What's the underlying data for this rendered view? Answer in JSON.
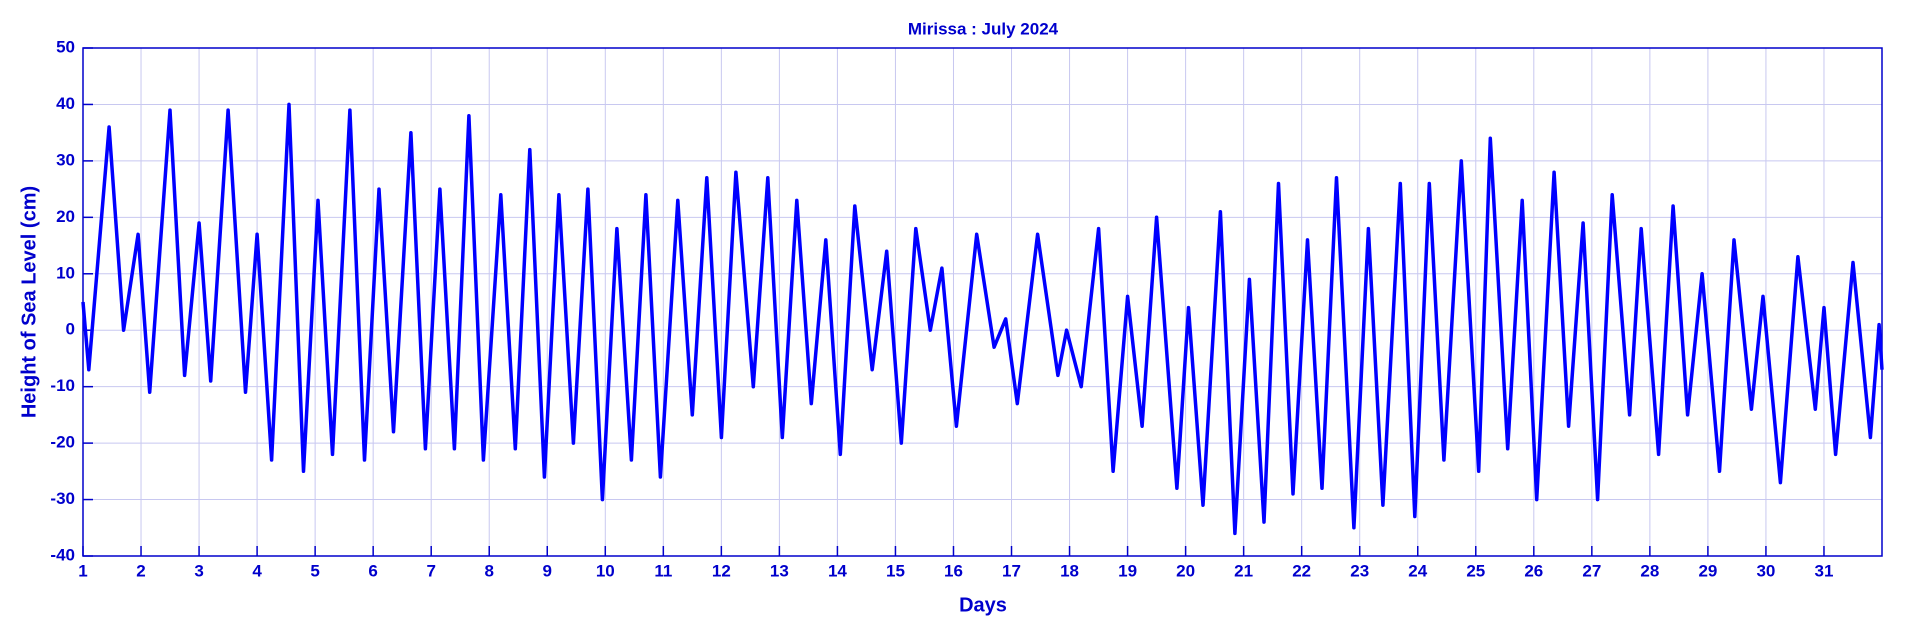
{
  "chart_data": {
    "type": "line",
    "title": "Mirissa : July 2024",
    "x_label": "Days",
    "y_label": "Height of Sea Level (cm)",
    "color": "#0000ff",
    "grid": true,
    "xlim": [
      1,
      32
    ],
    "ylim": [
      -40,
      50
    ],
    "xticks": [
      1,
      2,
      3,
      4,
      5,
      6,
      7,
      8,
      9,
      10,
      11,
      12,
      13,
      14,
      15,
      16,
      17,
      18,
      19,
      20,
      21,
      22,
      23,
      24,
      25,
      26,
      27,
      28,
      29,
      30,
      31
    ],
    "yticks": [
      -40,
      -30,
      -20,
      -10,
      0,
      10,
      20,
      30,
      40,
      50
    ],
    "x": [
      1.0,
      1.1,
      1.45,
      1.7,
      1.95,
      2.15,
      2.5,
      2.75,
      3.0,
      3.2,
      3.5,
      3.8,
      4.0,
      4.25,
      4.55,
      4.8,
      5.05,
      5.3,
      5.6,
      5.85,
      6.1,
      6.35,
      6.65,
      6.9,
      7.15,
      7.4,
      7.65,
      7.9,
      8.2,
      8.45,
      8.7,
      8.95,
      9.2,
      9.45,
      9.7,
      9.95,
      10.2,
      10.45,
      10.7,
      10.95,
      11.25,
      11.5,
      11.75,
      12.0,
      12.25,
      12.55,
      12.8,
      13.05,
      13.3,
      13.55,
      13.8,
      14.05,
      14.3,
      14.6,
      14.85,
      15.1,
      15.35,
      15.6,
      15.8,
      16.05,
      16.4,
      16.7,
      16.9,
      17.1,
      17.45,
      17.8,
      17.95,
      18.2,
      18.5,
      18.75,
      19.0,
      19.25,
      19.5,
      19.85,
      20.05,
      20.3,
      20.6,
      20.85,
      21.1,
      21.35,
      21.6,
      21.85,
      22.1,
      22.35,
      22.6,
      22.9,
      23.15,
      23.4,
      23.7,
      23.95,
      24.2,
      24.45,
      24.75,
      25.05,
      25.25,
      25.55,
      25.8,
      26.05,
      26.35,
      26.6,
      26.85,
      27.1,
      27.35,
      27.65,
      27.85,
      28.15,
      28.4,
      28.65,
      28.9,
      29.2,
      29.45,
      29.75,
      29.95,
      30.25,
      30.55,
      30.85,
      31.0,
      31.2,
      31.5,
      31.8,
      31.95,
      32.0
    ],
    "values": [
      5,
      -7,
      36,
      0,
      17,
      -11,
      39,
      -8,
      19,
      -9,
      39,
      -11,
      17,
      -23,
      40,
      -25,
      23,
      -22,
      39,
      -23,
      25,
      -18,
      35,
      -21,
      25,
      -21,
      38,
      -23,
      24,
      -21,
      32,
      -26,
      24,
      -20,
      25,
      -30,
      18,
      -23,
      24,
      -26,
      23,
      -15,
      27,
      -19,
      28,
      -10,
      27,
      -19,
      23,
      -13,
      16,
      -22,
      22,
      -7,
      14,
      -20,
      18,
      0,
      11,
      -17,
      17,
      -3,
      2,
      -13,
      17,
      -8,
      0,
      -10,
      18,
      -25,
      6,
      -17,
      20,
      -28,
      4,
      -31,
      21,
      -36,
      9,
      -34,
      26,
      -29,
      16,
      -28,
      27,
      -35,
      18,
      -31,
      26,
      -33,
      26,
      -23,
      30,
      -25,
      34,
      -21,
      23,
      -30,
      28,
      -17,
      19,
      -30,
      24,
      -15,
      18,
      -22,
      22,
      -15,
      10,
      -25,
      16,
      -14,
      6,
      -27,
      13,
      -14,
      4,
      -22,
      12,
      -19,
      1,
      -7
    ]
  }
}
